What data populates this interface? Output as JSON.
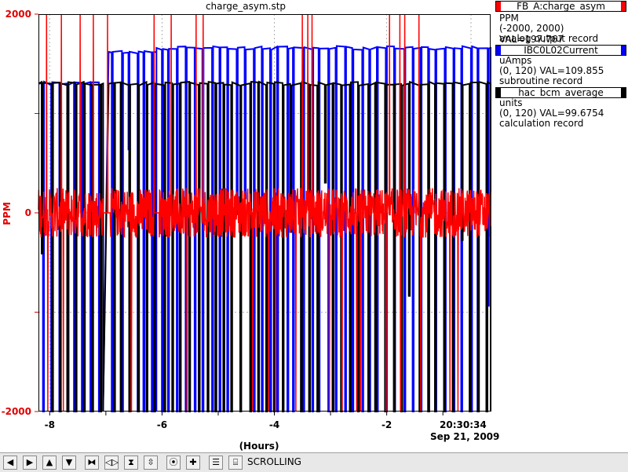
{
  "chart_data": {
    "type": "line",
    "title": "charge_asym.stp",
    "xlabel": "(Hours)",
    "ylabel": "PPM",
    "xlim": [
      -8.2,
      -0.15
    ],
    "ylim": [
      -2000,
      2000
    ],
    "x_ticks": [
      "-8",
      "-6",
      "-4",
      "-2"
    ],
    "y_ticks": [
      "2000",
      "0",
      "-2000"
    ],
    "end_time": "20:30:34",
    "end_date": "Sep 21, 2009",
    "grid": true,
    "legend_position": "right",
    "series": [
      {
        "name": "FB_A:charge_asym",
        "color": "#ff0000",
        "units": "PPM",
        "range": "(-2000, 2000)",
        "value": "VAL=197.767",
        "record": "analog output record",
        "baseline": 0,
        "noise": 250,
        "gaps": [
          [
            -7.05,
            -6.92
          ],
          [
            -6.15,
            -6.05
          ]
        ]
      },
      {
        "name": "IBC0L02Current",
        "color": "#0000ff",
        "units": "uAmps",
        "range": "(0, 120)",
        "value": "VAL=109.855",
        "record": "subroutine record",
        "segments": [
          [
            -8.2,
            -7.05,
            1300
          ],
          [
            -6.95,
            -6.1,
            1620
          ],
          [
            -6.1,
            -0.15,
            1660
          ]
        ]
      },
      {
        "name": "hac_bcm_average",
        "color": "#000000",
        "units": "units",
        "range": "(0, 120)",
        "value": "VAL=99.6754",
        "record": "calculation record",
        "segments": [
          [
            -8.2,
            -7.05,
            1300
          ],
          [
            -6.95,
            -0.15,
            1300
          ]
        ]
      }
    ]
  },
  "toolbar": {
    "status": "SCROLLING",
    "buttons": [
      "arrow-left",
      "arrow-right",
      "arrow-up",
      "arrow-down",
      "zoom-x-in",
      "zoom-x-out",
      "zoom-y-in",
      "zoom-y-out",
      "reset",
      "add",
      "config"
    ]
  }
}
